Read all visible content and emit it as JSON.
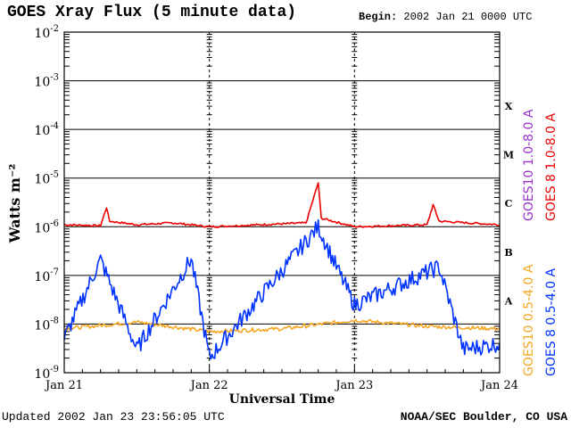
{
  "header": {
    "title": "GOES Xray Flux (5 minute data)",
    "begin_label": "Begin:",
    "begin_value": "2002 Jan 21 0000 UTC"
  },
  "footer": {
    "updated_label": "Updated",
    "updated_value": "2002 Jan 23 23:56:05 UTC",
    "credit": "NOAA/SEC Boulder, CO USA"
  },
  "colors": {
    "goes10_long": "#9933cc",
    "goes8_long": "#ee0000",
    "goes10_short": "#f5a623",
    "goes8_short": "#0033ff"
  },
  "chart_data": {
    "type": "line",
    "title": "GOES Xray Flux (5 minute data)",
    "xlabel": "Universal Time",
    "ylabel": "Watts m⁻²",
    "y_scale": "log",
    "ylim": [
      1e-09,
      0.01
    ],
    "y_ticks": [
      {
        "exp": "-2",
        "value": 0.01
      },
      {
        "exp": "-3",
        "value": 0.001
      },
      {
        "exp": "-4",
        "value": 0.0001
      },
      {
        "exp": "-5",
        "value": 1e-05
      },
      {
        "exp": "-6",
        "value": 1e-06
      },
      {
        "exp": "-7",
        "value": 1e-07
      },
      {
        "exp": "-8",
        "value": 1e-08
      },
      {
        "exp": "-9",
        "value": 1e-09
      }
    ],
    "xlim": [
      "2002-01-21 00:00",
      "2002-01-24 00:00"
    ],
    "x_ticks": [
      "Jan 21",
      "Jan 22",
      "Jan 23",
      "Jan 24"
    ],
    "flare_classes": [
      {
        "label": "X",
        "value": 0.0003
      },
      {
        "label": "M",
        "value": 3e-05
      },
      {
        "label": "C",
        "value": 3e-06
      },
      {
        "label": "B",
        "value": 3e-07
      },
      {
        "label": "A",
        "value": 3e-08
      }
    ],
    "grid": "horizontal at each decade",
    "legend_position": "right, rotated vertical",
    "series": [
      {
        "name": "GOES10 1.0-8.0 A",
        "color": "#9933cc",
        "points": []
      },
      {
        "name": "GOES 8 1.0-8.0 A",
        "color": "#ee0000",
        "points": [
          [
            "2002-01-21 00:00",
            1.1e-06
          ],
          [
            "2002-01-21 06:00",
            1.05e-06
          ],
          [
            "2002-01-21 07:00",
            2.5e-06
          ],
          [
            "2002-01-21 07:30",
            1.3e-06
          ],
          [
            "2002-01-21 12:00",
            1.1e-06
          ],
          [
            "2002-01-21 18:00",
            1.2e-06
          ],
          [
            "2002-01-22 00:00",
            1e-06
          ],
          [
            "2002-01-22 16:00",
            1.2e-06
          ],
          [
            "2002-01-22 18:00",
            8e-06
          ],
          [
            "2002-01-22 18:30",
            1.5e-06
          ],
          [
            "2002-01-23 00:00",
            1e-06
          ],
          [
            "2002-01-23 12:00",
            1.1e-06
          ],
          [
            "2002-01-23 13:00",
            2.8e-06
          ],
          [
            "2002-01-23 14:00",
            1.3e-06
          ],
          [
            "2002-01-24 00:00",
            1.1e-06
          ]
        ]
      },
      {
        "name": "GOES10 0.5-4.0 A",
        "color": "#f5a623",
        "points": [
          [
            "2002-01-21 00:00",
            8e-09
          ],
          [
            "2002-01-21 12:00",
            1.1e-08
          ],
          [
            "2002-01-22 00:00",
            7e-09
          ],
          [
            "2002-01-22 12:00",
            8e-09
          ],
          [
            "2002-01-23 00:00",
            1.2e-08
          ],
          [
            "2002-01-23 12:00",
            9e-09
          ],
          [
            "2002-01-24 00:00",
            8e-09
          ]
        ]
      },
      {
        "name": "GOES 8 0.5-4.0 A",
        "color": "#0033ff",
        "points": [
          [
            "2002-01-21 00:00",
            5e-09
          ],
          [
            "2002-01-21 06:00",
            2.1e-07
          ],
          [
            "2002-01-21 12:00",
            3e-09
          ],
          [
            "2002-01-21 21:00",
            2.2e-07
          ],
          [
            "2002-01-22 00:00",
            2e-09
          ],
          [
            "2002-01-22 18:00",
            1e-06
          ],
          [
            "2002-01-22 21:00",
            1.5e-07
          ],
          [
            "2002-01-23 00:00",
            2.5e-08
          ],
          [
            "2002-01-23 14:00",
            1.5e-07
          ],
          [
            "2002-01-23 18:00",
            3e-09
          ],
          [
            "2002-01-24 00:00",
            4e-09
          ]
        ]
      }
    ]
  }
}
